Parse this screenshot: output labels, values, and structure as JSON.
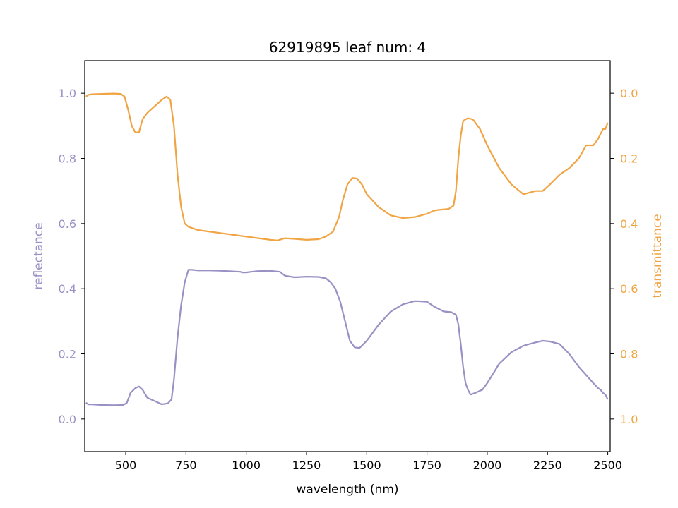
{
  "chart_data": {
    "type": "line",
    "title": "62919895 leaf num: 4",
    "xlabel": "wavelength (nm)",
    "xlim": [
      330,
      2510
    ],
    "xticks": [
      500,
      750,
      1000,
      1250,
      1500,
      1750,
      2000,
      2250,
      2500
    ],
    "left_axis": {
      "label": "reflectance",
      "color": "#9891c4",
      "lim": [
        -0.1,
        1.1
      ],
      "ticks": [
        0.0,
        0.2,
        0.4,
        0.6,
        0.8,
        1.0
      ],
      "tick_labels": [
        "0.0",
        "0.2",
        "0.4",
        "0.6",
        "0.8",
        "1.0"
      ]
    },
    "right_axis": {
      "label": "transmittance",
      "color": "#f0a443",
      "lim": [
        1.1,
        -0.1
      ],
      "inverted": true,
      "ticks": [
        0.0,
        0.2,
        0.4,
        0.6,
        0.8,
        1.0
      ],
      "tick_labels": [
        "0.0",
        "0.2",
        "0.4",
        "0.6",
        "0.8",
        "1.0"
      ]
    },
    "series": [
      {
        "axis": "left",
        "color": "#9891c4",
        "x": [
          335,
          345,
          360,
          400,
          450,
          490,
          505,
          520,
          540,
          555,
          570,
          590,
          620,
          650,
          675,
          690,
          700,
          715,
          730,
          745,
          760,
          775,
          800,
          850,
          900,
          950,
          975,
          985,
          1000,
          1020,
          1050,
          1100,
          1140,
          1160,
          1200,
          1250,
          1300,
          1330,
          1350,
          1370,
          1390,
          1410,
          1430,
          1450,
          1470,
          1500,
          1550,
          1600,
          1650,
          1700,
          1750,
          1780,
          1820,
          1850,
          1870,
          1880,
          1890,
          1900,
          1910,
          1920,
          1930,
          1950,
          1980,
          2000,
          2050,
          2100,
          2150,
          2200,
          2230,
          2260,
          2300,
          2340,
          2380,
          2410,
          2440,
          2460,
          2470,
          2480,
          2490,
          2500
        ],
        "y": [
          0.05,
          0.045,
          0.045,
          0.043,
          0.042,
          0.043,
          0.05,
          0.08,
          0.095,
          0.1,
          0.09,
          0.065,
          0.055,
          0.045,
          0.048,
          0.06,
          0.12,
          0.25,
          0.35,
          0.42,
          0.458,
          0.458,
          0.456,
          0.456,
          0.455,
          0.453,
          0.452,
          0.45,
          0.45,
          0.452,
          0.454,
          0.455,
          0.452,
          0.44,
          0.435,
          0.437,
          0.436,
          0.432,
          0.42,
          0.4,
          0.36,
          0.3,
          0.24,
          0.22,
          0.218,
          0.24,
          0.29,
          0.33,
          0.352,
          0.362,
          0.36,
          0.345,
          0.33,
          0.328,
          0.32,
          0.29,
          0.23,
          0.16,
          0.11,
          0.09,
          0.075,
          0.08,
          0.09,
          0.11,
          0.17,
          0.205,
          0.225,
          0.235,
          0.24,
          0.238,
          0.23,
          0.2,
          0.16,
          0.135,
          0.11,
          0.095,
          0.09,
          0.08,
          0.075,
          0.06
        ]
      },
      {
        "axis": "right",
        "color": "#f0a443",
        "x": [
          335,
          345,
          360,
          400,
          450,
          480,
          495,
          510,
          525,
          540,
          555,
          570,
          590,
          620,
          650,
          670,
          685,
          700,
          715,
          730,
          745,
          760,
          780,
          800,
          850,
          900,
          950,
          1000,
          1050,
          1100,
          1130,
          1160,
          1200,
          1250,
          1300,
          1330,
          1360,
          1385,
          1400,
          1420,
          1440,
          1460,
          1480,
          1500,
          1550,
          1600,
          1650,
          1700,
          1750,
          1780,
          1800,
          1840,
          1860,
          1870,
          1880,
          1890,
          1900,
          1910,
          1920,
          1940,
          1970,
          2000,
          2050,
          2100,
          2150,
          2200,
          2230,
          2260,
          2300,
          2340,
          2380,
          2410,
          2440,
          2460,
          2480,
          2490,
          2500
        ],
        "y": [
          0.01,
          0.005,
          0.003,
          0.002,
          0.001,
          0.002,
          0.01,
          0.05,
          0.1,
          0.12,
          0.12,
          0.08,
          0.06,
          0.04,
          0.02,
          0.01,
          0.02,
          0.1,
          0.25,
          0.35,
          0.4,
          0.41,
          0.415,
          0.42,
          0.425,
          0.43,
          0.435,
          0.44,
          0.445,
          0.45,
          0.452,
          0.445,
          0.447,
          0.45,
          0.448,
          0.44,
          0.425,
          0.38,
          0.33,
          0.28,
          0.26,
          0.262,
          0.28,
          0.31,
          0.35,
          0.375,
          0.383,
          0.38,
          0.37,
          0.36,
          0.358,
          0.355,
          0.345,
          0.3,
          0.2,
          0.13,
          0.085,
          0.08,
          0.077,
          0.08,
          0.11,
          0.16,
          0.23,
          0.28,
          0.31,
          0.3,
          0.3,
          0.28,
          0.25,
          0.23,
          0.2,
          0.16,
          0.16,
          0.14,
          0.11,
          0.11,
          0.09
        ]
      }
    ]
  }
}
